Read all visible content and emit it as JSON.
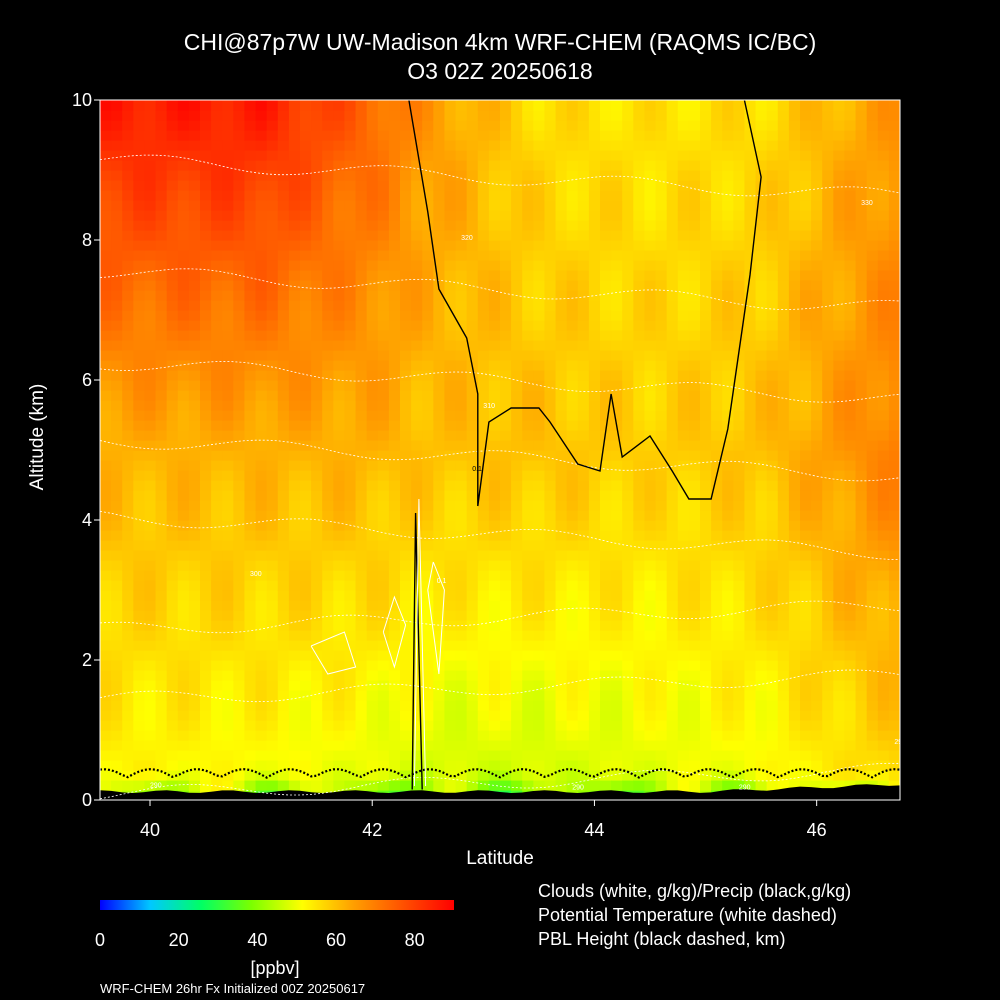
{
  "header": {
    "title_line1": "CHI@87p7W UW-Madison 4km WRF-CHEM (RAQMS IC/BC)",
    "title_line2": "O3 02Z 20250618"
  },
  "chart_data": {
    "type": "heatmap",
    "variable": "O3",
    "xlabel": "Latitude",
    "ylabel": "Altitude (km)",
    "xlim": [
      39.55,
      46.75
    ],
    "ylim": [
      0,
      10
    ],
    "x_ticks": [
      "40",
      "42",
      "44",
      "46"
    ],
    "y_ticks": [
      "0",
      "2",
      "4",
      "6",
      "8",
      "10"
    ],
    "colorbar": {
      "unit": "[ppbv]",
      "range": [
        0,
        90
      ],
      "ticks": [
        "0",
        "20",
        "40",
        "60",
        "80"
      ],
      "colors": [
        "#0000ff",
        "#00c8ff",
        "#00ff64",
        "#7cff00",
        "#ffff00",
        "#ffa000",
        "#ff5000",
        "#ff0000"
      ]
    },
    "o3_profile_ppbv": [
      {
        "lat": 39.55,
        "low": 52,
        "mid": 62,
        "high": 86
      },
      {
        "lat": 41.0,
        "low": 50,
        "mid": 62,
        "high": 86
      },
      {
        "lat": 42.0,
        "low": 48,
        "mid": 62,
        "high": 74
      },
      {
        "lat": 42.5,
        "low": 46,
        "mid": 60,
        "high": 66
      },
      {
        "lat": 43.5,
        "low": 46,
        "mid": 60,
        "high": 56
      },
      {
        "lat": 44.5,
        "low": 48,
        "mid": 58,
        "high": 55
      },
      {
        "lat": 45.5,
        "low": 50,
        "mid": 60,
        "high": 56
      },
      {
        "lat": 46.75,
        "low": 56,
        "mid": 70,
        "high": 66
      }
    ],
    "potential_temperature_labels": [
      "290",
      "300",
      "310",
      "320",
      "330",
      "290",
      "290",
      "290"
    ],
    "cloud_contour_label": "0.1",
    "precip_contour_label": "0.1",
    "legend": {
      "clouds": "Clouds (white, g/kg)/Precip (black,g/kg)",
      "theta": "Potential Temperature (white dashed)",
      "pbl": "PBL Height (black dashed, km)"
    }
  },
  "footer": "WRF-CHEM 26hr  Fx Initialized 00Z 20250617"
}
